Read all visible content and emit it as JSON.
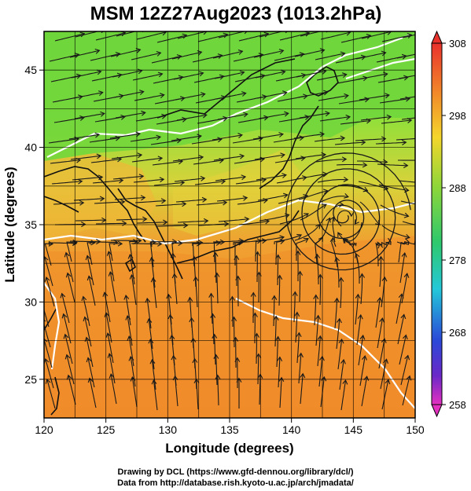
{
  "title": "MSM 12Z27Aug2023 (1013.2hPa)",
  "xlabel": "Longitude (degrees)",
  "ylabel": "Latitude  (degrees)",
  "x_ticks": [
    "120",
    "125",
    "130",
    "135",
    "140",
    "145",
    "150"
  ],
  "x_tick_values": [
    120,
    125,
    130,
    135,
    140,
    145,
    150
  ],
  "y_ticks": [
    "25",
    "30",
    "35",
    "40",
    "45"
  ],
  "y_tick_values": [
    25,
    30,
    35,
    40,
    45
  ],
  "colorbar": {
    "ticks": [
      "308",
      "298",
      "288",
      "278",
      "268",
      "258"
    ],
    "tick_values": [
      308,
      298,
      288,
      278,
      268,
      258
    ],
    "range": [
      258,
      308
    ]
  },
  "credits": [
    "Drawing by DCL (https://www.gfd-dennou.org/library/dcl/)",
    "Data from http://database.rish.kyoto-u.ac.jp/arch/jmadata/"
  ],
  "map_data": {
    "lon_range": [
      120,
      150
    ],
    "lat_range": [
      22.5,
      47.5
    ],
    "field": "temperature (K)",
    "vortex_center": {
      "lon": 144.3,
      "lat": 35.6
    }
  }
}
